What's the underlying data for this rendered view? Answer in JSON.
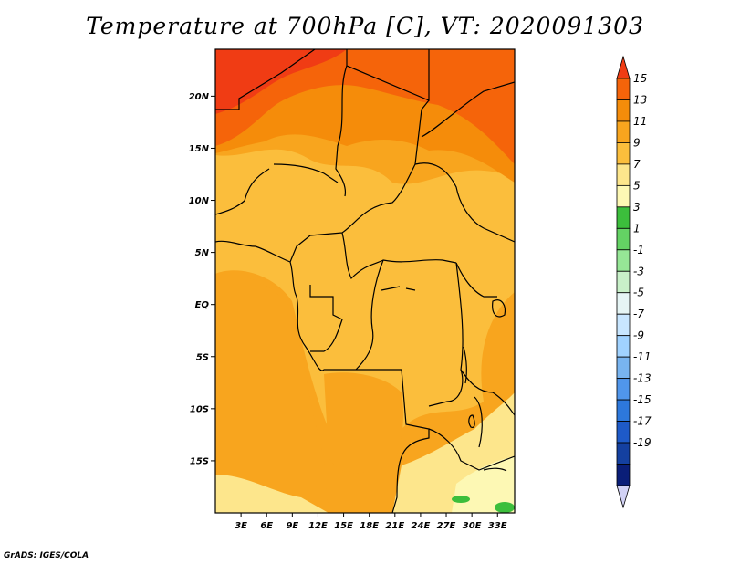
{
  "title": "Temperature at 700hPa [C], VT: 2020091303",
  "credit": "GrADS: IGES/COLA",
  "map": {
    "lat_ticks": [
      "20N",
      "15N",
      "10N",
      "5N",
      "EQ",
      "5S",
      "10S",
      "15S"
    ],
    "lon_ticks": [
      "3E",
      "6E",
      "9E",
      "12E",
      "15E",
      "18E",
      "21E",
      "24E",
      "27E",
      "30E",
      "33E"
    ],
    "lat_range": [
      -20,
      24.5
    ],
    "lon_range": [
      0,
      35
    ]
  },
  "colorbar": {
    "labels": [
      "15",
      "13",
      "11",
      "9",
      "7",
      "5",
      "3",
      "1",
      "-1",
      "-3",
      "-5",
      "-7",
      "-9",
      "-11",
      "-13",
      "-15",
      "-17",
      "-19"
    ],
    "colors": [
      "#f03c14",
      "#f5640a",
      "#f58c0a",
      "#f8a51e",
      "#fbbe3c",
      "#fde68c",
      "#fdf8b4",
      "#3cbe3c",
      "#64d264",
      "#96e696",
      "#c8f0c8",
      "#e6f5f5",
      "#c8e6ff",
      "#a0d2ff",
      "#78b4f0",
      "#5096eb",
      "#2d78dc",
      "#1e5ac8",
      "#1440a0",
      "#0a1e78",
      "#d2d2f5"
    ]
  }
}
